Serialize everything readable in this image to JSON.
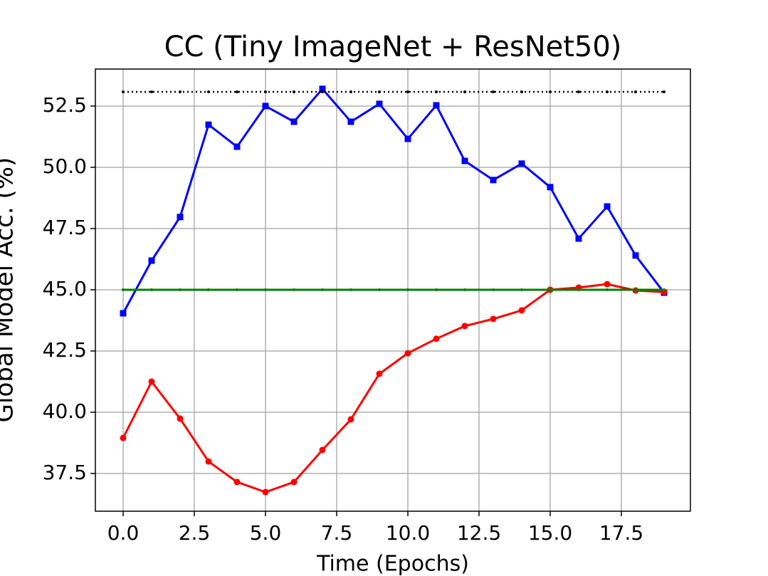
{
  "chart_data": {
    "type": "line",
    "title": "CC (Tiny ImageNet + ResNet50)",
    "x_label": "Time (Epochs)",
    "y_label": "Global Model Acc. (%)",
    "x": [
      0,
      1,
      2,
      3,
      4,
      5,
      6,
      7,
      8,
      9,
      10,
      11,
      12,
      13,
      14,
      15,
      16,
      17,
      18,
      19
    ],
    "series": [
      {
        "color": "#0000ff",
        "marker": "square",
        "linestyle": "solid",
        "values": [
          44.04,
          46.19,
          47.97,
          51.74,
          50.84,
          52.5,
          51.86,
          53.2,
          51.86,
          52.59,
          51.16,
          52.53,
          50.26,
          49.48,
          50.15,
          49.19,
          47.09,
          48.4,
          46.4,
          44.88
        ]
      },
      {
        "color": "#ff0000",
        "marker": "circle",
        "linestyle": "solid",
        "values": [
          38.95,
          41.25,
          39.74,
          37.99,
          37.15,
          36.74,
          37.15,
          38.46,
          39.71,
          41.57,
          42.41,
          43.0,
          43.52,
          43.81,
          44.16,
          45.0,
          45.09,
          45.23,
          44.97,
          44.91
        ]
      },
      {
        "color": "#008000",
        "marker": "tiny",
        "linestyle": "solid",
        "values": [
          45,
          45,
          45,
          45,
          45,
          45,
          45,
          45,
          45,
          45,
          45,
          45,
          45,
          45,
          45,
          45,
          45,
          45,
          45,
          45
        ]
      },
      {
        "color": "#000000",
        "marker": "tiny",
        "linestyle": "dotted",
        "values": [
          53.08,
          53.08,
          53.08,
          53.08,
          53.08,
          53.08,
          53.08,
          53.08,
          53.08,
          53.08,
          53.08,
          53.08,
          53.08,
          53.08,
          53.08,
          53.08,
          53.08,
          53.08,
          53.08,
          53.08
        ]
      }
    ],
    "xlim": [
      -0.975,
      19.925
    ],
    "xticks": [
      {
        "value": 0,
        "label": "0.0"
      },
      2.5,
      {
        "value": 5,
        "label": "5.0"
      },
      7.5,
      {
        "value": 10,
        "label": "10.0"
      },
      12.5,
      {
        "value": 15,
        "label": "15.0"
      },
      17.5
    ],
    "ylim": [
      35.96,
      54.01
    ],
    "yticks": [
      37.5,
      {
        "value": 40,
        "label": "40.0"
      },
      42.5,
      {
        "value": 45,
        "label": "45.0"
      },
      47.5,
      {
        "value": 50,
        "label": "50.0"
      },
      52.5
    ],
    "grid": true
  }
}
